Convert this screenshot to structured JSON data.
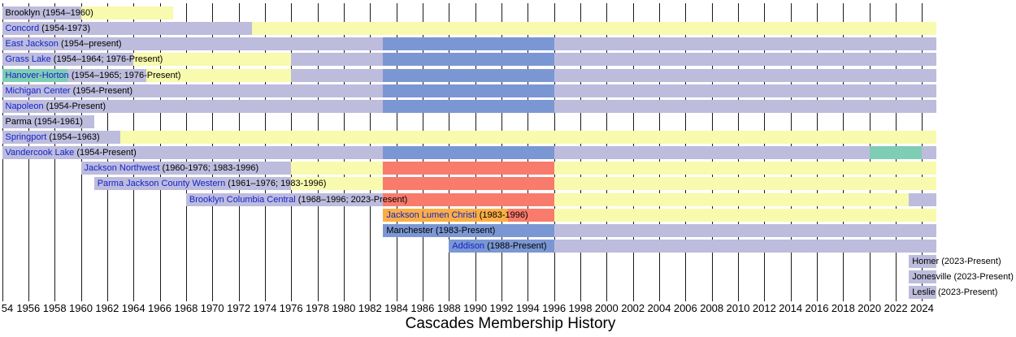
{
  "chart_data": {
    "type": "timeline",
    "title": "Cascades Membership History",
    "axis": {
      "min_year": 1954,
      "max_year": 2024,
      "tick_interval": 2,
      "present_end": 2025.1,
      "tick_labels": [
        "54",
        "1956",
        "1958",
        "1960",
        "1962",
        "1964",
        "1966",
        "1968",
        "1970",
        "1972",
        "1974",
        "1976",
        "1978",
        "1980",
        "1982",
        "1984",
        "1986",
        "1988",
        "1990",
        "1992",
        "1994",
        "1996",
        "1998",
        "2000",
        "2002",
        "2004",
        "2006",
        "2008",
        "2010",
        "2012",
        "2014",
        "2016",
        "2018",
        "2020",
        "2022",
        "2024"
      ]
    },
    "palette": {
      "lavender": "#BDBCDD",
      "yellow": "#F8FAAD",
      "blue": "#7B97D3",
      "red": "#F97B6B",
      "teal": "#7FCDB4",
      "orange": "#FBAE45"
    },
    "rows": [
      {
        "name": "Brooklyn",
        "years": "(1954–1960)",
        "linked": false,
        "segments": [
          [
            1954,
            1960,
            "lavender"
          ],
          [
            1960,
            1967,
            "yellow"
          ]
        ]
      },
      {
        "name": "Concord",
        "years": "(1954-1973)",
        "linked": true,
        "segments": [
          [
            1954,
            1973,
            "lavender"
          ],
          [
            1973,
            "present",
            "yellow"
          ]
        ]
      },
      {
        "name": "East Jackson",
        "years": "(1954–present)",
        "linked": true,
        "segments": [
          [
            1954,
            1983,
            "lavender"
          ],
          [
            1983,
            1996,
            "blue"
          ],
          [
            1996,
            "present",
            "lavender"
          ]
        ]
      },
      {
        "name": "Grass Lake",
        "years": "(1954–1964; 1976-Present)",
        "linked": true,
        "segments": [
          [
            1954,
            1964,
            "lavender"
          ],
          [
            1964,
            1976,
            "yellow"
          ],
          [
            1976,
            1983,
            "lavender"
          ],
          [
            1983,
            1996,
            "blue"
          ],
          [
            1996,
            "present",
            "lavender"
          ]
        ]
      },
      {
        "name": "Hanover-Horton",
        "years": "(1954–1965; 1976-Present)",
        "linked": true,
        "segments": [
          [
            1954,
            1959,
            "teal"
          ],
          [
            1959,
            1965,
            "lavender"
          ],
          [
            1965,
            1976,
            "yellow"
          ],
          [
            1976,
            1983,
            "lavender"
          ],
          [
            1983,
            1996,
            "blue"
          ],
          [
            1996,
            "present",
            "lavender"
          ]
        ]
      },
      {
        "name": "Michigan Center",
        "years": "(1954-Present)",
        "linked": true,
        "segments": [
          [
            1954,
            1983,
            "lavender"
          ],
          [
            1983,
            1996,
            "blue"
          ],
          [
            1996,
            "present",
            "lavender"
          ]
        ]
      },
      {
        "name": "Napoleon",
        "years": "(1954-Present)",
        "linked": true,
        "segments": [
          [
            1954,
            1983,
            "lavender"
          ],
          [
            1983,
            1996,
            "blue"
          ],
          [
            1996,
            "present",
            "lavender"
          ]
        ]
      },
      {
        "name": "Parma",
        "years": "(1954-1961)",
        "linked": false,
        "segments": [
          [
            1954,
            1961,
            "lavender"
          ]
        ]
      },
      {
        "name": "Springport",
        "years": "(1954–1963)",
        "linked": true,
        "segments": [
          [
            1954,
            1963,
            "lavender"
          ],
          [
            1963,
            "present",
            "yellow"
          ]
        ]
      },
      {
        "name": "Vandercook Lake",
        "years": "(1954-Present)",
        "linked": true,
        "segments": [
          [
            1954,
            1983,
            "lavender"
          ],
          [
            1983,
            1996,
            "blue"
          ],
          [
            1996,
            2020,
            "lavender"
          ],
          [
            2020,
            2024,
            "teal"
          ],
          [
            2024,
            "present",
            "lavender"
          ]
        ]
      },
      {
        "name": "Jackson Northwest",
        "years": "(1960-1976; 1983-1996)",
        "linked": true,
        "segments": [
          [
            1960,
            1976,
            "lavender"
          ],
          [
            1976,
            1983,
            "yellow"
          ],
          [
            1983,
            1996,
            "red"
          ],
          [
            1996,
            "present",
            "yellow"
          ]
        ]
      },
      {
        "name": "Parma Jackson County Western",
        "years": "(1961–1976; 1983-1996)",
        "linked": true,
        "segments": [
          [
            1961,
            1976,
            "lavender"
          ],
          [
            1976,
            1983,
            "yellow"
          ],
          [
            1983,
            1996,
            "red"
          ],
          [
            1996,
            "present",
            "yellow"
          ]
        ]
      },
      {
        "name": "Brooklyn Columbia Central",
        "years": "(1968–1996; 2023-Present)",
        "linked": true,
        "segments": [
          [
            1968,
            1983,
            "lavender"
          ],
          [
            1983,
            1996,
            "red"
          ],
          [
            1996,
            2023,
            "yellow"
          ],
          [
            2023,
            "present",
            "lavender"
          ]
        ]
      },
      {
        "name": "Jackson Lumen Christi",
        "years": "(1983-1996)",
        "linked": true,
        "segments": [
          [
            1983,
            1992.5,
            "orange"
          ],
          [
            1992.5,
            1996,
            "red"
          ],
          [
            1996,
            "present",
            "yellow"
          ]
        ]
      },
      {
        "name": "Manchester",
        "years": "(1983-Present)",
        "linked": false,
        "segments": [
          [
            1983,
            1996,
            "blue"
          ],
          [
            1996,
            "present",
            "lavender"
          ]
        ]
      },
      {
        "name": "Addison",
        "years": "(1988-Present)",
        "linked": true,
        "segments": [
          [
            1988,
            1996,
            "blue"
          ],
          [
            1996,
            "present",
            "lavender"
          ]
        ]
      },
      {
        "name": "Homer",
        "years": "(2023-Present)",
        "linked": false,
        "segments": [
          [
            2023,
            "present",
            "lavender"
          ]
        ]
      },
      {
        "name": "Jonesville",
        "years": "(2023-Present)",
        "linked": false,
        "segments": [
          [
            2023,
            "present",
            "lavender"
          ]
        ]
      },
      {
        "name": "Leslie",
        "years": "(2023-Present)",
        "linked": false,
        "segments": [
          [
            2023,
            "present",
            "lavender"
          ]
        ]
      }
    ]
  }
}
